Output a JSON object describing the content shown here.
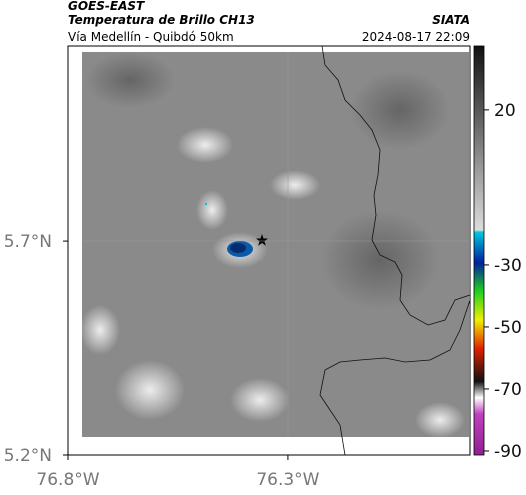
{
  "header": {
    "satellite": "GOES-EAST",
    "product": "Temperatura de Brillo CH13",
    "source": "SIATA",
    "region": "Vía Medellín - Quibdó 50km",
    "datetime": "2024-08-17 22:09"
  },
  "map": {
    "xlim": [
      -76.8,
      -75.886
    ],
    "ylim": [
      5.2,
      6.156
    ],
    "xticks": [
      {
        "value": -76.8,
        "label": "76.8°W"
      },
      {
        "value": -76.3,
        "label": "76.3°W"
      }
    ],
    "yticks": [
      {
        "value": 5.2,
        "label": "5.2°N"
      },
      {
        "value": 5.7,
        "label": "5.7°N"
      }
    ]
  },
  "colorbar": {
    "lim": [
      -91.3,
      40.6
    ],
    "ticks": [
      20,
      -30,
      -50,
      -70,
      -90
    ]
  }
}
